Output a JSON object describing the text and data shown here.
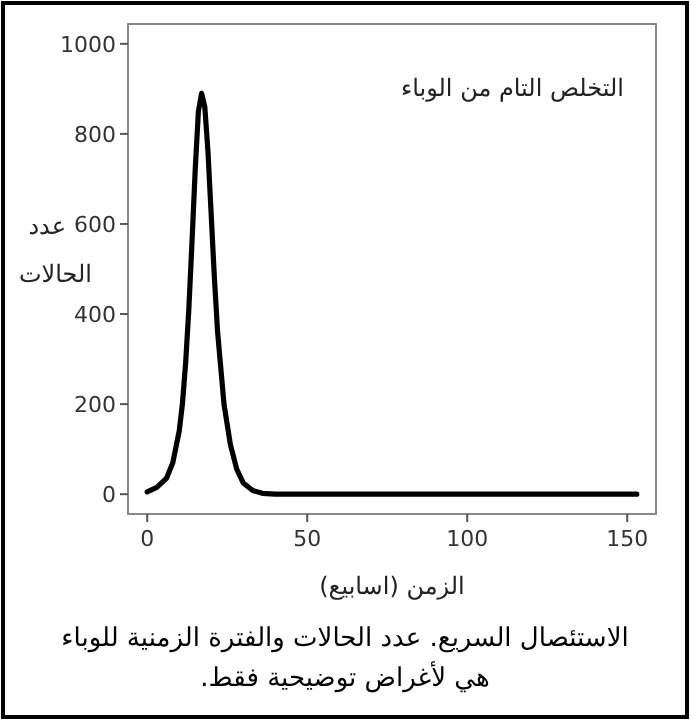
{
  "chart_data": {
    "type": "line",
    "xlabel": "الزمن (اسابيع)",
    "ylabel": "عدد الحالات",
    "x": [
      0,
      3,
      6,
      8,
      10,
      11,
      12,
      13,
      14,
      15,
      16,
      17,
      18,
      19,
      20,
      21,
      22,
      24,
      26,
      28,
      30,
      33,
      36,
      40,
      60,
      100,
      153
    ],
    "series": [
      {
        "color": "#000000",
        "values": [
          5,
          15,
          35,
          70,
          140,
          200,
          290,
          410,
          560,
          720,
          850,
          890,
          860,
          760,
          620,
          480,
          360,
          200,
          110,
          55,
          25,
          8,
          2,
          0,
          0,
          0,
          0
        ]
      }
    ],
    "xlim": [
      -6,
      159
    ],
    "ylim": [
      -44,
      1044
    ],
    "xticks": [
      0,
      50,
      100,
      150
    ],
    "yticks": [
      0,
      200,
      400,
      600,
      800,
      1000
    ],
    "grid": false,
    "marker": "none",
    "line_style": "solid",
    "annotations": [
      "التخلص التام من الوباء",
      "الاستئصال السريع. عدد الحالات والفترة الزمنية للوباء هي لأغراض توضيحية فقط."
    ]
  }
}
